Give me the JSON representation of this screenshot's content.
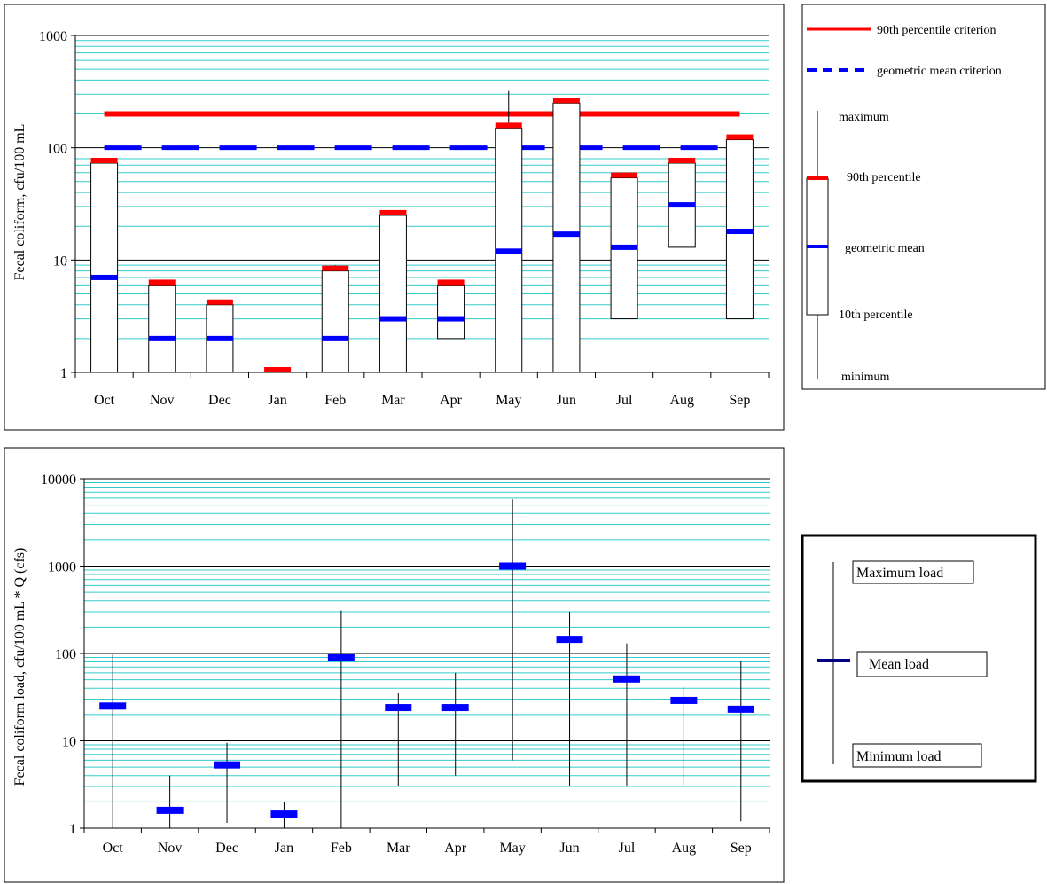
{
  "chart_data": [
    {
      "type": "bar",
      "scale": "log",
      "xlabel": "",
      "ylabel": "Fecal coliform, cfu/100 mL",
      "ylim": [
        1,
        1000
      ],
      "y_ticks": [
        "1",
        "10",
        "100",
        "1000"
      ],
      "grid": true,
      "categories": [
        "Oct",
        "Nov",
        "Dec",
        "Jan",
        "Feb",
        "Mar",
        "Apr",
        "May",
        "Jun",
        "Jul",
        "Aug",
        "Sep"
      ],
      "series": [
        {
          "name": "minimum",
          "values": [
            1,
            1,
            1,
            1,
            1,
            1,
            2,
            1,
            1,
            3,
            13,
            3
          ]
        },
        {
          "name": "10th percentile",
          "values": [
            1,
            1,
            1,
            1,
            1,
            1,
            2,
            1,
            1,
            3,
            13,
            3
          ]
        },
        {
          "name": "geometric mean",
          "values": [
            7,
            2,
            2,
            1,
            2,
            3,
            3,
            12,
            17,
            13,
            31,
            18
          ]
        },
        {
          "name": "90th percentile",
          "values": [
            73,
            6,
            4,
            1,
            8,
            25,
            6,
            150,
            250,
            54,
            73,
            118
          ]
        },
        {
          "name": "maximum",
          "values": [
            73,
            6,
            4,
            1,
            9,
            25,
            6,
            320,
            250,
            54,
            73,
            118
          ]
        }
      ],
      "criteria": [
        {
          "name": "90th percentile criterion",
          "value": 200,
          "color": "#ff0000"
        },
        {
          "name": "geometric mean criterion",
          "value": 100,
          "color": "#0000ff"
        }
      ],
      "legend": {
        "placement": "right",
        "items": [
          "90th percentile criterion",
          "geometric mean criterion",
          "maximum",
          "90th percentile",
          "geometric mean",
          "10th percentile",
          "minimum"
        ]
      },
      "colors": {
        "p90": "#ff0000",
        "mean": "#0000ff",
        "grid": "#33cccc",
        "major_grid": "#000000"
      }
    },
    {
      "type": "bar",
      "scale": "log",
      "xlabel": "",
      "ylabel": "Fecal coliform load, cfu/100 mL * Q (cfs)",
      "ylim": [
        1,
        10000
      ],
      "y_ticks": [
        "1",
        "10",
        "100",
        "1000",
        "10000"
      ],
      "grid": true,
      "categories": [
        "Oct",
        "Nov",
        "Dec",
        "Jan",
        "Feb",
        "Mar",
        "Apr",
        "May",
        "Jun",
        "Jul",
        "Aug",
        "Sep"
      ],
      "series": [
        {
          "name": "Minimum load",
          "values": [
            1,
            1,
            1.15,
            1,
            1,
            3,
            4,
            6,
            3,
            3,
            3,
            1.2
          ]
        },
        {
          "name": "Mean load",
          "values": [
            25,
            1.6,
            5.3,
            1.45,
            89,
            24,
            24,
            1000,
            145,
            51,
            29,
            23
          ]
        },
        {
          "name": "Maximum load",
          "values": [
            97,
            4,
            9.5,
            2,
            310,
            35,
            60,
            5800,
            300,
            130,
            42,
            82
          ]
        }
      ],
      "legend": {
        "placement": "right",
        "items": [
          "Maximum load",
          "Mean load",
          "Minimum load"
        ]
      },
      "colors": {
        "mean": "#0000ff",
        "legend_mean": "#000080",
        "grid": "#33cccc",
        "major_grid": "#000000"
      }
    }
  ]
}
